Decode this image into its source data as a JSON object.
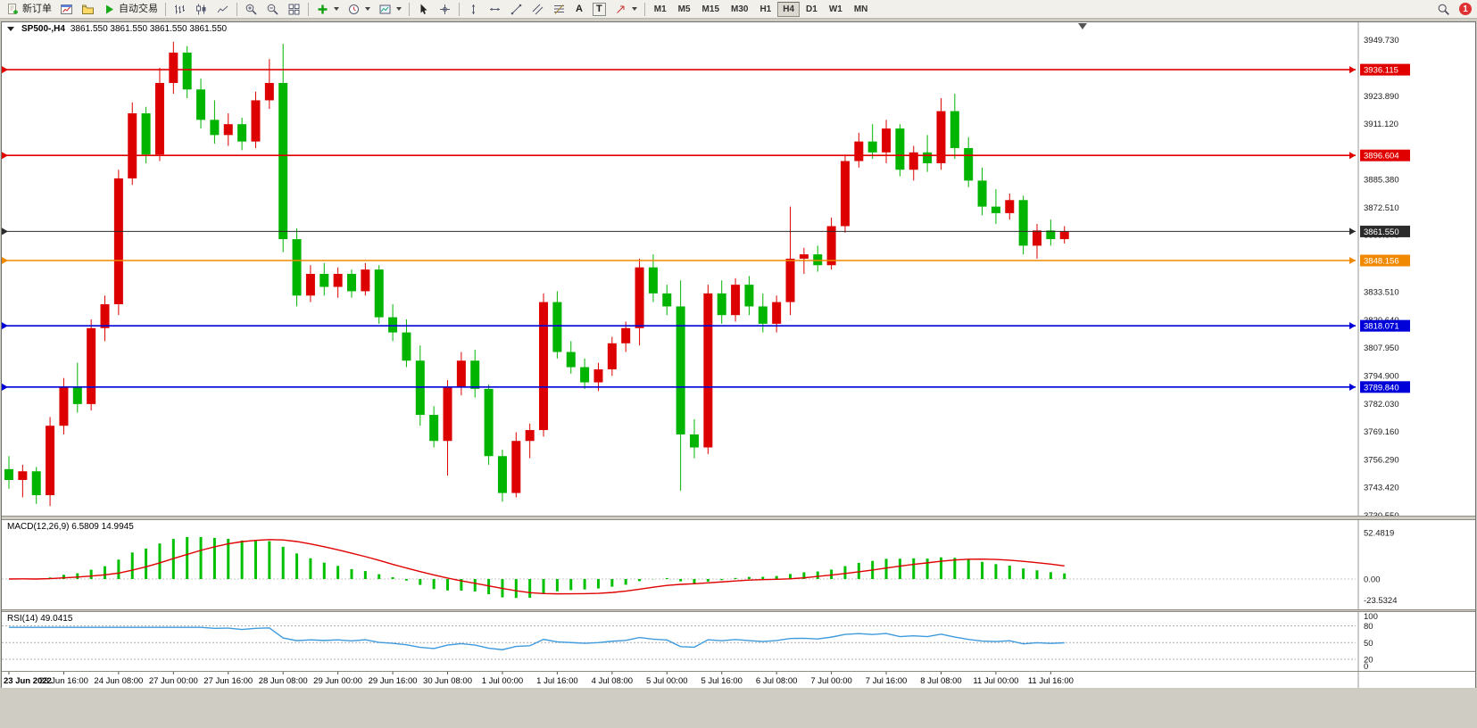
{
  "toolbar": {
    "new_order": "新订单",
    "auto_trading": "自动交易",
    "text_tool": "A",
    "label_tool": "T",
    "timeframes": [
      "M1",
      "M5",
      "M15",
      "M30",
      "H1",
      "H4",
      "D1",
      "W1",
      "MN"
    ],
    "active_timeframe": "H4",
    "notification_count": "1"
  },
  "chart_data": {
    "type": "candlestick",
    "symbol": "SP500-",
    "period": "H4",
    "title": "SP500-,H4",
    "ohlc_text": "3861.550 3861.550 3861.550 3861.550",
    "current_price": "3861.550",
    "colors": {
      "up": "#dd0000",
      "down": "#00b400",
      "macd_hist": "#00c000",
      "macd_signal": "#e00000",
      "rsi_line": "#3e9bdd",
      "current_line": "#333333"
    },
    "price_axis": {
      "max": 3949.73,
      "min": 3730.55,
      "labels": [
        "3949.730",
        "3923.890",
        "3911.120",
        "3885.380",
        "3872.510",
        "3859.870",
        "3833.510",
        "3820.640",
        "3807.950",
        "3794.900",
        "3782.030",
        "3769.160",
        "3756.290",
        "3743.420",
        "3730.550"
      ]
    },
    "levels": [
      {
        "price": 3936.115,
        "label": "3936.115",
        "color": "#e00000",
        "current": false
      },
      {
        "price": 3896.604,
        "label": "3896.604",
        "color": "#e00000",
        "current": false
      },
      {
        "price": 3861.55,
        "label": "3861.550",
        "color": "#2b2b2b",
        "current": true
      },
      {
        "price": 3848.156,
        "label": "3848.156",
        "color": "#f08800",
        "current": false
      },
      {
        "price": 3818.071,
        "label": "3818.071",
        "color": "#0000d8",
        "current": false
      },
      {
        "price": 3789.84,
        "label": "3789.840",
        "color": "#0000d8",
        "current": false
      }
    ],
    "time_labels": [
      "23 Jun 2022",
      "23 Jun 16:00",
      "24 Jun 08:00",
      "27 Jun 00:00",
      "27 Jun 16:00",
      "28 Jun 08:00",
      "29 Jun 00:00",
      "29 Jun 16:00",
      "30 Jun 08:00",
      "1 Jul 00:00",
      "1 Jul 16:00",
      "4 Jul 08:00",
      "5 Jul 00:00",
      "5 Jul 16:00",
      "6 Jul 08:00",
      "7 Jul 00:00",
      "7 Jul 16:00",
      "8 Jul 08:00",
      "11 Jul 00:00",
      "11 Jul 16:00"
    ],
    "label_every": 4,
    "candles": [
      [
        3752,
        3758,
        3743,
        3747
      ],
      [
        3747,
        3754,
        3739,
        3751
      ],
      [
        3751,
        3753,
        3736,
        3740
      ],
      [
        3740,
        3776,
        3735,
        3772
      ],
      [
        3772,
        3794,
        3768,
        3790
      ],
      [
        3790,
        3801,
        3778,
        3782
      ],
      [
        3782,
        3821,
        3779,
        3817
      ],
      [
        3817,
        3832,
        3811,
        3828
      ],
      [
        3828,
        3890,
        3823,
        3886
      ],
      [
        3886,
        3921,
        3883,
        3916
      ],
      [
        3916,
        3919,
        3893,
        3897
      ],
      [
        3897,
        3937,
        3894,
        3930
      ],
      [
        3930,
        3949,
        3925,
        3944
      ],
      [
        3944,
        3947,
        3923,
        3927
      ],
      [
        3927,
        3932,
        3909,
        3913
      ],
      [
        3913,
        3922,
        3902,
        3906
      ],
      [
        3906,
        3916,
        3901,
        3911
      ],
      [
        3911,
        3914,
        3899,
        3903
      ],
      [
        3903,
        3926,
        3900,
        3922
      ],
      [
        3922,
        3941,
        3918,
        3930
      ],
      [
        3930,
        3948,
        3852,
        3858
      ],
      [
        3858,
        3863,
        3827,
        3832
      ],
      [
        3832,
        3846,
        3829,
        3842
      ],
      [
        3842,
        3847,
        3832,
        3836
      ],
      [
        3836,
        3845,
        3831,
        3842
      ],
      [
        3842,
        3844,
        3831,
        3834
      ],
      [
        3834,
        3847,
        3832,
        3844
      ],
      [
        3844,
        3846,
        3819,
        3822
      ],
      [
        3822,
        3828,
        3811,
        3815
      ],
      [
        3815,
        3821,
        3799,
        3802
      ],
      [
        3802,
        3809,
        3772,
        3777
      ],
      [
        3777,
        3781,
        3762,
        3765
      ],
      [
        3765,
        3793,
        3749,
        3790
      ],
      [
        3790,
        3806,
        3786,
        3802
      ],
      [
        3802,
        3807,
        3785,
        3789
      ],
      [
        3789,
        3791,
        3754,
        3758
      ],
      [
        3758,
        3761,
        3737,
        3741
      ],
      [
        3741,
        3769,
        3739,
        3765
      ],
      [
        3765,
        3773,
        3757,
        3770
      ],
      [
        3770,
        3833,
        3767,
        3829
      ],
      [
        3829,
        3834,
        3803,
        3806
      ],
      [
        3806,
        3811,
        3796,
        3799
      ],
      [
        3799,
        3803,
        3789,
        3792
      ],
      [
        3792,
        3801,
        3788,
        3798
      ],
      [
        3798,
        3813,
        3795,
        3810
      ],
      [
        3810,
        3820,
        3806,
        3817
      ],
      [
        3817,
        3849,
        3809,
        3845
      ],
      [
        3845,
        3851,
        3829,
        3833
      ],
      [
        3833,
        3837,
        3823,
        3827
      ],
      [
        3827,
        3839,
        3742,
        3768
      ],
      [
        3768,
        3775,
        3757,
        3762
      ],
      [
        3762,
        3837,
        3759,
        3833
      ],
      [
        3833,
        3839,
        3819,
        3823
      ],
      [
        3823,
        3840,
        3820,
        3837
      ],
      [
        3837,
        3841,
        3823,
        3827
      ],
      [
        3827,
        3833,
        3815,
        3819
      ],
      [
        3819,
        3832,
        3815,
        3829
      ],
      [
        3829,
        3873,
        3823,
        3849
      ],
      [
        3849,
        3854,
        3842,
        3851
      ],
      [
        3851,
        3855,
        3843,
        3846
      ],
      [
        3846,
        3868,
        3844,
        3864
      ],
      [
        3864,
        3897,
        3861,
        3894
      ],
      [
        3894,
        3907,
        3891,
        3903
      ],
      [
        3903,
        3911,
        3895,
        3898
      ],
      [
        3898,
        3913,
        3893,
        3909
      ],
      [
        3909,
        3911,
        3887,
        3890
      ],
      [
        3890,
        3901,
        3885,
        3898
      ],
      [
        3898,
        3906,
        3889,
        3893
      ],
      [
        3893,
        3923,
        3890,
        3917
      ],
      [
        3917,
        3925,
        3895,
        3900
      ],
      [
        3900,
        3905,
        3882,
        3885
      ],
      [
        3885,
        3891,
        3869,
        3873
      ],
      [
        3873,
        3881,
        3865,
        3870
      ],
      [
        3870,
        3879,
        3867,
        3876
      ],
      [
        3876,
        3878,
        3851,
        3855
      ],
      [
        3855,
        3865,
        3849,
        3862
      ],
      [
        3862,
        3867,
        3855,
        3858
      ],
      [
        3858,
        3864,
        3856,
        3861.55
      ]
    ],
    "macd": {
      "label": "MACD(12,26,9) 6.5809 14.9945",
      "params": [
        12,
        26,
        9
      ],
      "value_main": "6.5809",
      "value_signal": "14.9945",
      "axis_labels": [
        "52.4819",
        "0.00",
        "-23.5324"
      ],
      "axis_max": 52.4819,
      "axis_min": -23.5324
    },
    "rsi": {
      "label": "RSI(14) 49.0415",
      "period": 14,
      "value": "49.0415",
      "axis_labels": [
        "100",
        "80",
        "50",
        "20",
        "0"
      ],
      "levels": [
        80,
        50,
        20
      ]
    }
  }
}
